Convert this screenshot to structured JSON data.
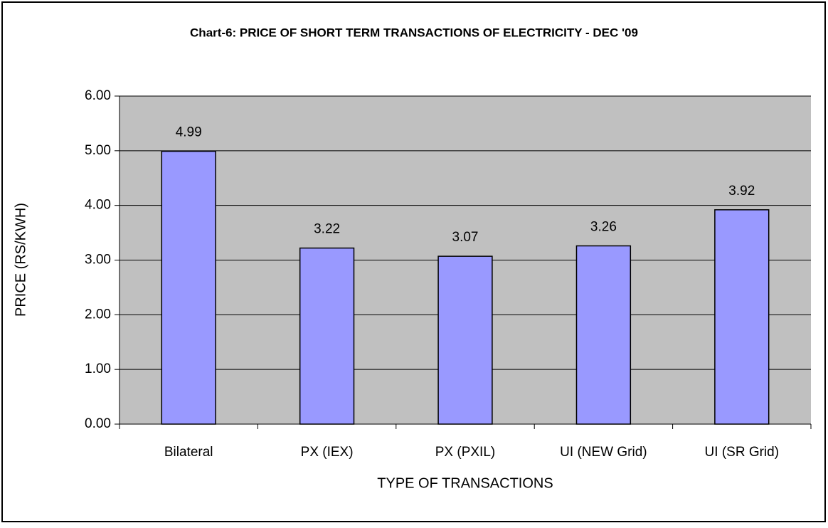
{
  "chart_data": {
    "type": "bar",
    "title": "Chart-6: PRICE OF SHORT TERM TRANSACTIONS OF ELECTRICITY - DEC '09",
    "x_label": "TYPE OF TRANSACTIONS",
    "y_label": "PRICE (RS/KWH)",
    "categories": [
      "Bilateral",
      "PX (IEX)",
      "PX (PXIL)",
      "UI (NEW Grid)",
      "UI (SR Grid)"
    ],
    "values": [
      4.99,
      3.22,
      3.07,
      3.26,
      3.92
    ],
    "color": "#9999ff",
    "ylim": [
      0,
      6
    ],
    "yticks": [
      {
        "value": 0,
        "label": "0.00"
      },
      {
        "value": 1,
        "label": "1.00"
      },
      {
        "value": 2,
        "label": "2.00"
      },
      {
        "value": 3,
        "label": "3.00"
      },
      {
        "value": 4,
        "label": "4.00"
      },
      {
        "value": 5,
        "label": "5.00"
      },
      {
        "value": 6,
        "label": "6.00"
      }
    ],
    "grid": true
  }
}
